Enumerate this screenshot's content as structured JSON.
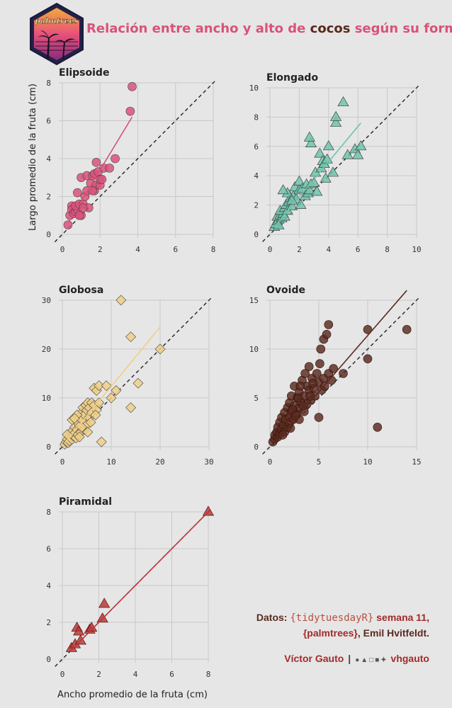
{
  "title": {
    "pre": "Relación entre ancho y alto de ",
    "highlight": "cocos",
    "post": " según su forma"
  },
  "logo_text": "palmtrees",
  "axis": {
    "ylabel": "Largo promedio de la fruta (cm)",
    "xlabel": "Ancho promedio de la fruta (cm)"
  },
  "credits": {
    "line1_label": "Datos:",
    "line1_code": "{tidytuesdayR}",
    "line1_rest": "semana 11,",
    "line2_pkg": "{palmtrees}",
    "line2_rest": ", Emil Hvitfeldt.",
    "author": "Víctor Gauto",
    "separator": "|",
    "handle": "vhgauto",
    "icons": [
      "github-icon",
      "twitter-icon",
      "instagram-icon",
      "mastodon-icon",
      "bluesky-icon"
    ]
  },
  "chart_data": [
    {
      "type": "scatter",
      "title": "Elipsoide",
      "shape": "circle",
      "color": "#d9527a",
      "xlim": [
        0,
        8
      ],
      "ylim": [
        0,
        8
      ],
      "xticks": [
        0,
        2,
        4,
        6,
        8
      ],
      "yticks": [
        0,
        2,
        4,
        6,
        8
      ],
      "trend": [
        [
          0.3,
          0.6
        ],
        [
          3.7,
          6.2
        ]
      ],
      "points": [
        [
          0.3,
          0.5
        ],
        [
          0.4,
          1.0
        ],
        [
          0.5,
          1.5
        ],
        [
          0.5,
          1.3
        ],
        [
          0.6,
          1.1
        ],
        [
          0.7,
          1.2
        ],
        [
          0.8,
          1.3
        ],
        [
          0.7,
          1.5
        ],
        [
          0.9,
          1.6
        ],
        [
          0.8,
          2.2
        ],
        [
          1.0,
          1.0
        ],
        [
          1.1,
          1.6
        ],
        [
          1.0,
          3.0
        ],
        [
          1.2,
          2.0
        ],
        [
          1.3,
          3.1
        ],
        [
          1.4,
          1.4
        ],
        [
          1.5,
          2.7
        ],
        [
          1.6,
          3.1
        ],
        [
          1.7,
          2.3
        ],
        [
          1.8,
          2.6
        ],
        [
          1.7,
          3.2
        ],
        [
          1.8,
          3.8
        ],
        [
          1.9,
          3.3
        ],
        [
          2.0,
          2.6
        ],
        [
          2.0,
          2.9
        ],
        [
          2.1,
          2.9
        ],
        [
          2.2,
          3.5
        ],
        [
          2.5,
          3.5
        ],
        [
          2.8,
          4.0
        ],
        [
          3.6,
          6.5
        ],
        [
          3.7,
          7.8
        ],
        [
          1.3,
          2.3
        ],
        [
          1.6,
          2.3
        ],
        [
          0.9,
          1.0
        ],
        [
          1.1,
          1.4
        ]
      ]
    },
    {
      "type": "scatter",
      "title": "Elongado",
      "shape": "triangle",
      "color": "#6fc4ad",
      "xlim": [
        0,
        10
      ],
      "ylim": [
        0,
        10
      ],
      "xticks": [
        0,
        2,
        4,
        6,
        8,
        10
      ],
      "yticks": [
        0,
        2,
        4,
        6,
        8,
        10
      ],
      "trend": [
        [
          0.3,
          0.5
        ],
        [
          6.2,
          7.6
        ]
      ],
      "points": [
        [
          0.3,
          0.5
        ],
        [
          0.4,
          0.7
        ],
        [
          0.5,
          0.9
        ],
        [
          0.6,
          1.0
        ],
        [
          0.5,
          1.2
        ],
        [
          0.7,
          1.3
        ],
        [
          0.8,
          1.1
        ],
        [
          0.9,
          1.4
        ],
        [
          0.7,
          1.6
        ],
        [
          1.0,
          1.2
        ],
        [
          1.0,
          1.8
        ],
        [
          1.1,
          2.0
        ],
        [
          1.2,
          1.6
        ],
        [
          1.3,
          2.2
        ],
        [
          1.4,
          2.5
        ],
        [
          1.5,
          1.9
        ],
        [
          1.2,
          2.8
        ],
        [
          0.9,
          3.0
        ],
        [
          1.6,
          2.6
        ],
        [
          1.7,
          3.2
        ],
        [
          1.8,
          2.4
        ],
        [
          2.0,
          3.0
        ],
        [
          2.0,
          3.6
        ],
        [
          2.1,
          2.0
        ],
        [
          2.2,
          3.1
        ],
        [
          2.4,
          2.6
        ],
        [
          2.5,
          3.4
        ],
        [
          2.6,
          2.8
        ],
        [
          2.7,
          3.0
        ],
        [
          2.8,
          3.4
        ],
        [
          3.0,
          3.5
        ],
        [
          3.1,
          4.2
        ],
        [
          3.2,
          2.9
        ],
        [
          3.4,
          5.5
        ],
        [
          3.5,
          4.5
        ],
        [
          3.6,
          5.0
        ],
        [
          3.7,
          4.8
        ],
        [
          3.8,
          3.8
        ],
        [
          3.9,
          5.1
        ],
        [
          4.0,
          6.0
        ],
        [
          4.3,
          4.2
        ],
        [
          4.5,
          7.6
        ],
        [
          4.5,
          8.0
        ],
        [
          5.0,
          9.0
        ],
        [
          5.3,
          5.4
        ],
        [
          5.8,
          5.8
        ],
        [
          6.0,
          5.4
        ],
        [
          6.2,
          6.0
        ],
        [
          2.8,
          6.2
        ],
        [
          2.7,
          6.6
        ],
        [
          1.5,
          2.3
        ],
        [
          0.6,
          0.6
        ]
      ]
    },
    {
      "type": "scatter",
      "title": "Globosa",
      "shape": "diamond",
      "color": "#f0cf85",
      "xlim": [
        0,
        30
      ],
      "ylim": [
        0,
        30
      ],
      "xticks": [
        0,
        10,
        20,
        30
      ],
      "yticks": [
        0,
        10,
        20,
        30
      ],
      "trend": [
        [
          0.5,
          0.8
        ],
        [
          20,
          24.5
        ]
      ],
      "points": [
        [
          0.5,
          0.5
        ],
        [
          0.8,
          1.0
        ],
        [
          1.0,
          1.5
        ],
        [
          1.2,
          0.8
        ],
        [
          1.5,
          2.0
        ],
        [
          1.5,
          1.2
        ],
        [
          1.8,
          2.8
        ],
        [
          2.0,
          1.5
        ],
        [
          2.0,
          3.2
        ],
        [
          2.2,
          2.2
        ],
        [
          2.5,
          2.8
        ],
        [
          2.5,
          4.0
        ],
        [
          2.8,
          1.8
        ],
        [
          3.0,
          3.5
        ],
        [
          3.0,
          5.0
        ],
        [
          3.2,
          2.5
        ],
        [
          3.5,
          6.0
        ],
        [
          3.5,
          4.2
        ],
        [
          3.8,
          3.0
        ],
        [
          4.0,
          7.0
        ],
        [
          4.0,
          5.5
        ],
        [
          4.2,
          8.0
        ],
        [
          4.5,
          3.5
        ],
        [
          4.5,
          6.5
        ],
        [
          4.8,
          8.5
        ],
        [
          5.0,
          4.5
        ],
        [
          5.0,
          7.5
        ],
        [
          5.2,
          9.0
        ],
        [
          5.5,
          6.0
        ],
        [
          5.5,
          8.0
        ],
        [
          5.8,
          5.0
        ],
        [
          6.0,
          7.0
        ],
        [
          6.0,
          9.0
        ],
        [
          6.5,
          8.5
        ],
        [
          6.5,
          12.0
        ],
        [
          7.0,
          7.5
        ],
        [
          7.0,
          11.5
        ],
        [
          7.5,
          12.5
        ],
        [
          7.5,
          9.0
        ],
        [
          8.0,
          1.0
        ],
        [
          9.0,
          12.5
        ],
        [
          10.0,
          10.0
        ],
        [
          11.0,
          11.5
        ],
        [
          12.0,
          30.0
        ],
        [
          14.0,
          22.5
        ],
        [
          14.0,
          8.0
        ],
        [
          15.5,
          13.0
        ],
        [
          20.0,
          20.0
        ],
        [
          2.0,
          5.5
        ],
        [
          3.5,
          2.0
        ],
        [
          1.0,
          2.5
        ],
        [
          4.0,
          4.0
        ],
        [
          6.8,
          6.5
        ],
        [
          5.2,
          3.0
        ],
        [
          3.0,
          6.5
        ],
        [
          2.5,
          5.8
        ]
      ]
    },
    {
      "type": "scatter",
      "title": "Ovoide",
      "shape": "circle",
      "color": "#5a2a1e",
      "xlim": [
        0,
        15
      ],
      "ylim": [
        0,
        15
      ],
      "xticks": [
        0,
        5,
        10,
        15
      ],
      "yticks": [
        0,
        5,
        10,
        15
      ],
      "trend": [
        [
          0.3,
          0.2
        ],
        [
          14.0,
          16.0
        ]
      ],
      "points": [
        [
          0.3,
          0.5
        ],
        [
          0.5,
          0.8
        ],
        [
          0.5,
          1.2
        ],
        [
          0.7,
          1.5
        ],
        [
          0.8,
          1.0
        ],
        [
          0.8,
          2.0
        ],
        [
          1.0,
          1.3
        ],
        [
          1.0,
          2.5
        ],
        [
          1.2,
          1.8
        ],
        [
          1.2,
          3.0
        ],
        [
          1.4,
          2.2
        ],
        [
          1.5,
          1.5
        ],
        [
          1.5,
          3.5
        ],
        [
          1.6,
          2.8
        ],
        [
          1.8,
          2.0
        ],
        [
          1.8,
          4.0
        ],
        [
          2.0,
          3.0
        ],
        [
          2.0,
          2.4
        ],
        [
          2.0,
          4.5
        ],
        [
          2.2,
          3.6
        ],
        [
          2.2,
          5.2
        ],
        [
          2.4,
          2.8
        ],
        [
          2.5,
          4.2
        ],
        [
          2.5,
          6.2
        ],
        [
          2.7,
          3.4
        ],
        [
          2.8,
          5.0
        ],
        [
          3.0,
          4.0
        ],
        [
          3.0,
          2.8
        ],
        [
          3.0,
          5.6
        ],
        [
          3.2,
          4.6
        ],
        [
          3.3,
          6.8
        ],
        [
          3.5,
          3.6
        ],
        [
          3.5,
          5.2
        ],
        [
          3.6,
          7.5
        ],
        [
          3.8,
          4.4
        ],
        [
          3.8,
          6.2
        ],
        [
          4.0,
          5.8
        ],
        [
          4.0,
          8.2
        ],
        [
          4.2,
          4.8
        ],
        [
          4.3,
          7.0
        ],
        [
          4.5,
          6.0
        ],
        [
          4.6,
          5.2
        ],
        [
          4.8,
          7.5
        ],
        [
          5.0,
          3.0
        ],
        [
          5.0,
          6.6
        ],
        [
          5.2,
          10.0
        ],
        [
          5.3,
          5.8
        ],
        [
          5.5,
          7.0
        ],
        [
          5.5,
          11.0
        ],
        [
          5.6,
          6.2
        ],
        [
          5.8,
          11.5
        ],
        [
          6.0,
          7.5
        ],
        [
          6.0,
          12.5
        ],
        [
          6.3,
          6.8
        ],
        [
          6.5,
          8.0
        ],
        [
          7.5,
          7.5
        ],
        [
          10.0,
          12.0
        ],
        [
          10.0,
          9.0
        ],
        [
          11.0,
          2.0
        ],
        [
          14.0,
          12.0
        ],
        [
          2.3,
          3.8
        ],
        [
          2.6,
          3.2
        ],
        [
          3.4,
          4.2
        ],
        [
          1.3,
          1.2
        ],
        [
          2.1,
          1.9
        ],
        [
          4.4,
          6.5
        ],
        [
          4.1,
          5.2
        ],
        [
          3.1,
          6.2
        ],
        [
          5.1,
          8.5
        ],
        [
          2.9,
          5.0
        ]
      ]
    },
    {
      "type": "scatter",
      "title": "Piramidal",
      "shape": "triangle",
      "color": "#b83a3a",
      "xlim": [
        0,
        8
      ],
      "ylim": [
        0,
        8
      ],
      "xticks": [
        0,
        2,
        4,
        6,
        8
      ],
      "yticks": [
        0,
        2,
        4,
        6,
        8
      ],
      "trend": [
        [
          0.4,
          0.4
        ],
        [
          8.0,
          8.0
        ]
      ],
      "points": [
        [
          0.5,
          0.6
        ],
        [
          0.7,
          0.8
        ],
        [
          0.8,
          1.7
        ],
        [
          0.9,
          1.5
        ],
        [
          1.0,
          1.0
        ],
        [
          1.5,
          1.6
        ],
        [
          1.6,
          1.7
        ],
        [
          2.2,
          2.2
        ],
        [
          2.3,
          3.0
        ],
        [
          8.0,
          8.0
        ]
      ]
    }
  ]
}
